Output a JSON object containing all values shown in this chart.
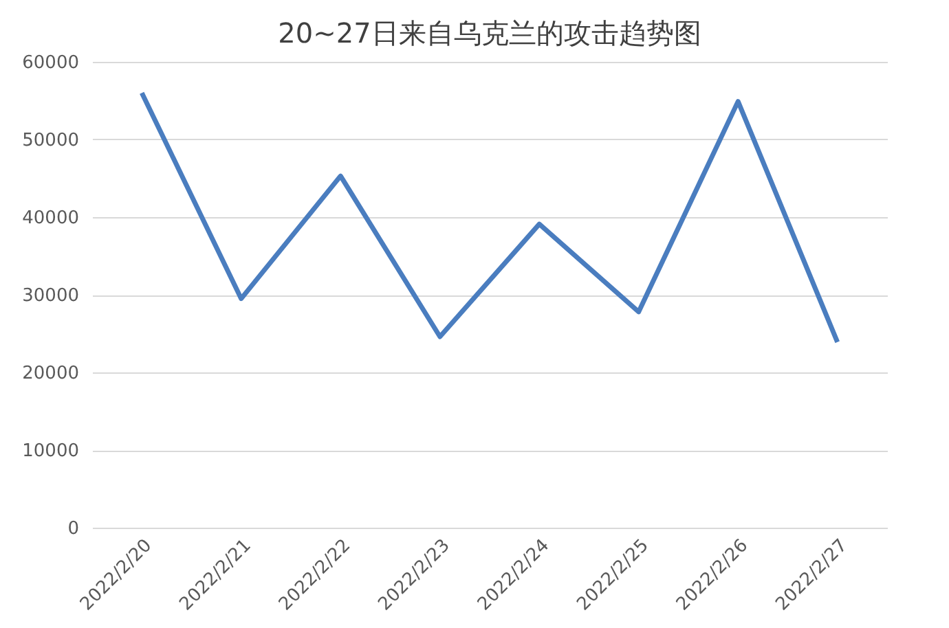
{
  "chart_data": {
    "type": "line",
    "title": "20~27日来自乌克兰的攻击趋势图",
    "categories": [
      "2022/2/20",
      "2022/2/21",
      "2022/2/22",
      "2022/2/23",
      "2022/2/24",
      "2022/2/25",
      "2022/2/26",
      "2022/2/27"
    ],
    "series": [
      {
        "color": "#4a7dbf",
        "values": [
          56000,
          29500,
          45300,
          24600,
          39100,
          27800,
          54900,
          23900
        ]
      }
    ],
    "ylim": [
      0,
      60000
    ],
    "yticks": [
      0,
      10000,
      20000,
      30000,
      40000,
      50000,
      60000
    ],
    "grid": "y",
    "marker": "none",
    "line_style": "solid"
  }
}
